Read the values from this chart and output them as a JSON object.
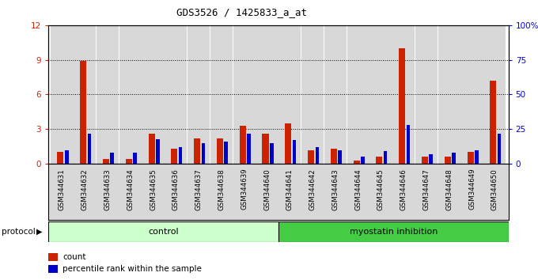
{
  "title": "GDS3526 / 1425833_a_at",
  "samples": [
    "GSM344631",
    "GSM344632",
    "GSM344633",
    "GSM344634",
    "GSM344635",
    "GSM344636",
    "GSM344637",
    "GSM344638",
    "GSM344639",
    "GSM344640",
    "GSM344641",
    "GSM344642",
    "GSM344643",
    "GSM344644",
    "GSM344645",
    "GSM344646",
    "GSM344647",
    "GSM344648",
    "GSM344649",
    "GSM344650"
  ],
  "count": [
    1.0,
    8.9,
    0.4,
    0.4,
    2.6,
    1.3,
    2.2,
    2.2,
    3.3,
    2.6,
    3.5,
    1.2,
    1.3,
    0.3,
    0.6,
    10.0,
    0.6,
    0.6,
    1.0,
    7.2
  ],
  "percentile": [
    10,
    22,
    8,
    8,
    18,
    12,
    15,
    16,
    22,
    15,
    17,
    12,
    10,
    5,
    9,
    28,
    7,
    8,
    10,
    22
  ],
  "count_color": "#cc2200",
  "percentile_color": "#0000cc",
  "control_count": 10,
  "group1_label": "control",
  "group2_label": "myostatin inhibition",
  "group1_color": "#ccffcc",
  "group2_color": "#44cc44",
  "protocol_label": "protocol",
  "ylim_left": [
    0,
    12
  ],
  "ylim_right": [
    0,
    100
  ],
  "yticks_left": [
    0,
    3,
    6,
    9,
    12
  ],
  "yticks_right": [
    0,
    25,
    50,
    75,
    100
  ],
  "background_color": "#ffffff",
  "plot_bg_color": "#ffffff",
  "bar_bg_color": "#d8d8d8",
  "label_area_color": "#d0d0d0"
}
